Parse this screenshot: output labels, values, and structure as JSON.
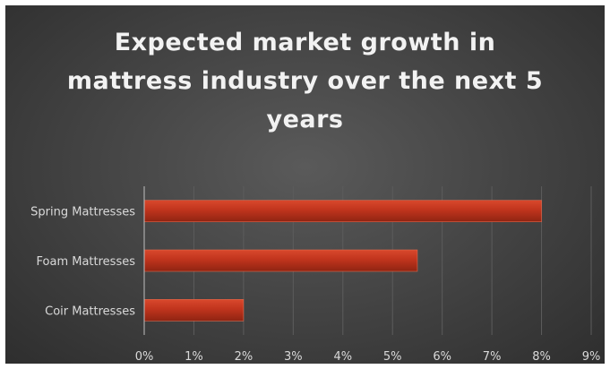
{
  "chart_data": {
    "type": "bar",
    "orientation": "horizontal",
    "title": "Expected market growth in mattress industry over the next 5 years",
    "title_lines": [
      "Expected market growth in",
      "mattress industry over the next 5",
      "years"
    ],
    "categories": [
      "Spring Mattresses",
      "Foam Mattresses",
      "Coir Mattresses"
    ],
    "values": [
      8,
      5.5,
      2
    ],
    "value_unit": "%",
    "xlim": [
      0,
      9
    ],
    "xticks": [
      "0%",
      "1%",
      "2%",
      "3%",
      "4%",
      "5%",
      "6%",
      "7%",
      "8%",
      "9%"
    ],
    "xlabel": "",
    "ylabel": "",
    "grid": "vertical",
    "colors": {
      "bar": "#c0341d",
      "background": "#404040",
      "text": "#d9d9d9"
    }
  }
}
